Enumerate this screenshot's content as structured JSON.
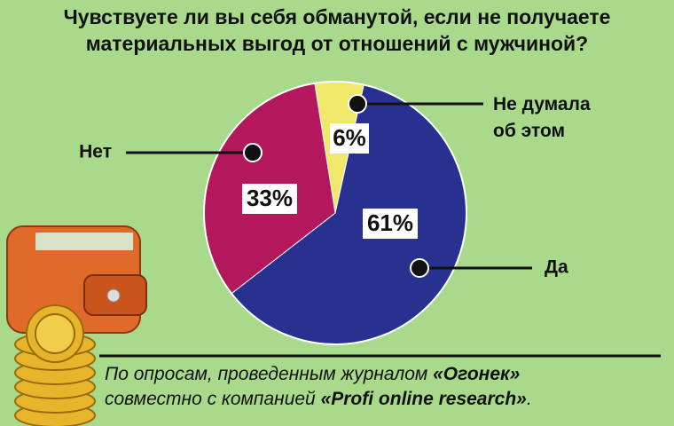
{
  "chart_data": {
    "type": "pie",
    "title": "Чувствуете ли вы себя обманутой, если не получаете материальных выгод от отношений с мужчиной?",
    "categories": [
      "Не думала об этом",
      "Да",
      "Нет"
    ],
    "values": [
      6,
      61,
      33
    ],
    "value_labels": [
      "6%",
      "61%",
      "33%"
    ],
    "colors": [
      "#efe86a",
      "#28318f",
      "#b4185c"
    ],
    "footnote": [
      "По опросам, проведенным журналом ",
      "«Огонек»",
      "совместно с компанией ",
      "«Profi online research»",
      "."
    ]
  }
}
